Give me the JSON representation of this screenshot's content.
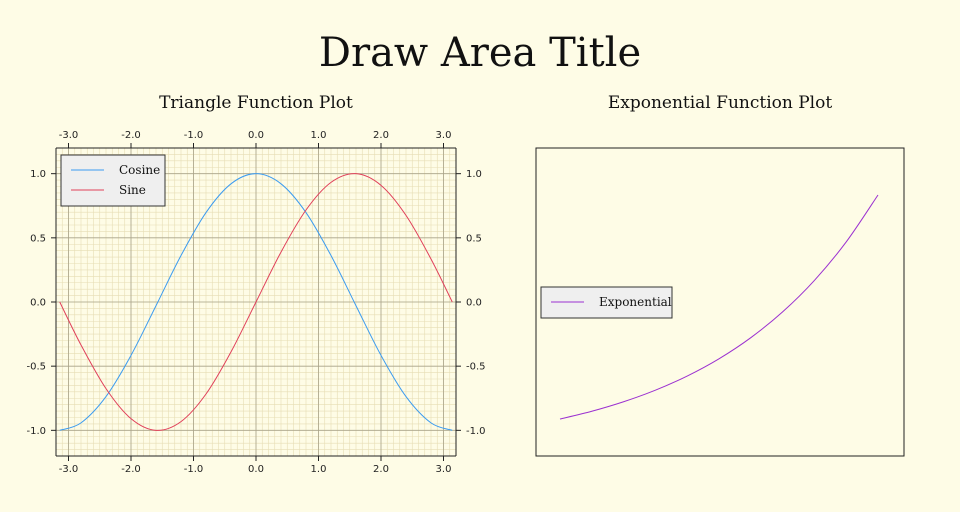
{
  "draw_area_title": "Draw Area Title",
  "chart_data": [
    {
      "type": "line",
      "title": "Triangle Function Plot",
      "xlabel": "",
      "ylabel": "",
      "xlim": [
        -3.2,
        3.2
      ],
      "ylim": [
        -1.2,
        1.2
      ],
      "x_ticks": [
        -3.0,
        -2.0,
        -1.0,
        0.0,
        1.0,
        2.0,
        3.0
      ],
      "x_tick_labels": [
        "-3.0",
        "-2.0",
        "-1.0",
        "0.0",
        "1.0",
        "2.0",
        "3.0"
      ],
      "y_ticks": [
        -1.0,
        -0.5,
        0.0,
        0.5,
        1.0
      ],
      "y_tick_labels": [
        "-1.0",
        "-0.5",
        "0.0",
        "0.5",
        "1.0"
      ],
      "axes_mirrored": true,
      "grid": true,
      "legend_position": "top-left",
      "series": [
        {
          "name": "Cosine",
          "color": "#3b9bf0",
          "x": [
            -3.14,
            -2.8,
            -2.4,
            -2.0,
            -1.6,
            -1.2,
            -0.8,
            -0.4,
            0.0,
            0.4,
            0.8,
            1.2,
            1.6,
            2.0,
            2.4,
            2.8,
            3.14
          ],
          "y": [
            -1.0,
            -0.942,
            -0.737,
            -0.416,
            -0.029,
            0.362,
            0.697,
            0.921,
            1.0,
            0.921,
            0.697,
            0.362,
            -0.029,
            -0.416,
            -0.737,
            -0.942,
            -1.0
          ]
        },
        {
          "name": "Sine",
          "color": "#e0405a",
          "x": [
            -3.14,
            -2.8,
            -2.4,
            -2.0,
            -1.6,
            -1.2,
            -0.8,
            -0.4,
            0.0,
            0.4,
            0.8,
            1.2,
            1.6,
            2.0,
            2.4,
            2.8,
            3.14
          ],
          "y": [
            0.0,
            -0.335,
            -0.675,
            -0.909,
            -1.0,
            -0.932,
            -0.717,
            -0.389,
            0.0,
            0.389,
            0.717,
            0.932,
            1.0,
            0.909,
            0.675,
            0.335,
            0.0
          ]
        }
      ]
    },
    {
      "type": "line",
      "title": "Exponential Function Plot",
      "xlabel": "",
      "ylabel": "",
      "axes_visible": false,
      "grid": false,
      "legend_position": "middle-left",
      "series": [
        {
          "name": "Exponential",
          "color": "#9b30d0",
          "x": [
            0.0,
            0.2,
            0.4,
            0.6,
            0.8,
            1.0,
            1.2,
            1.4,
            1.6,
            1.8,
            2.0
          ],
          "y": [
            1.0,
            1.221,
            1.492,
            1.822,
            2.226,
            2.718,
            3.32,
            4.055,
            4.953,
            6.05,
            7.389
          ]
        }
      ]
    }
  ]
}
